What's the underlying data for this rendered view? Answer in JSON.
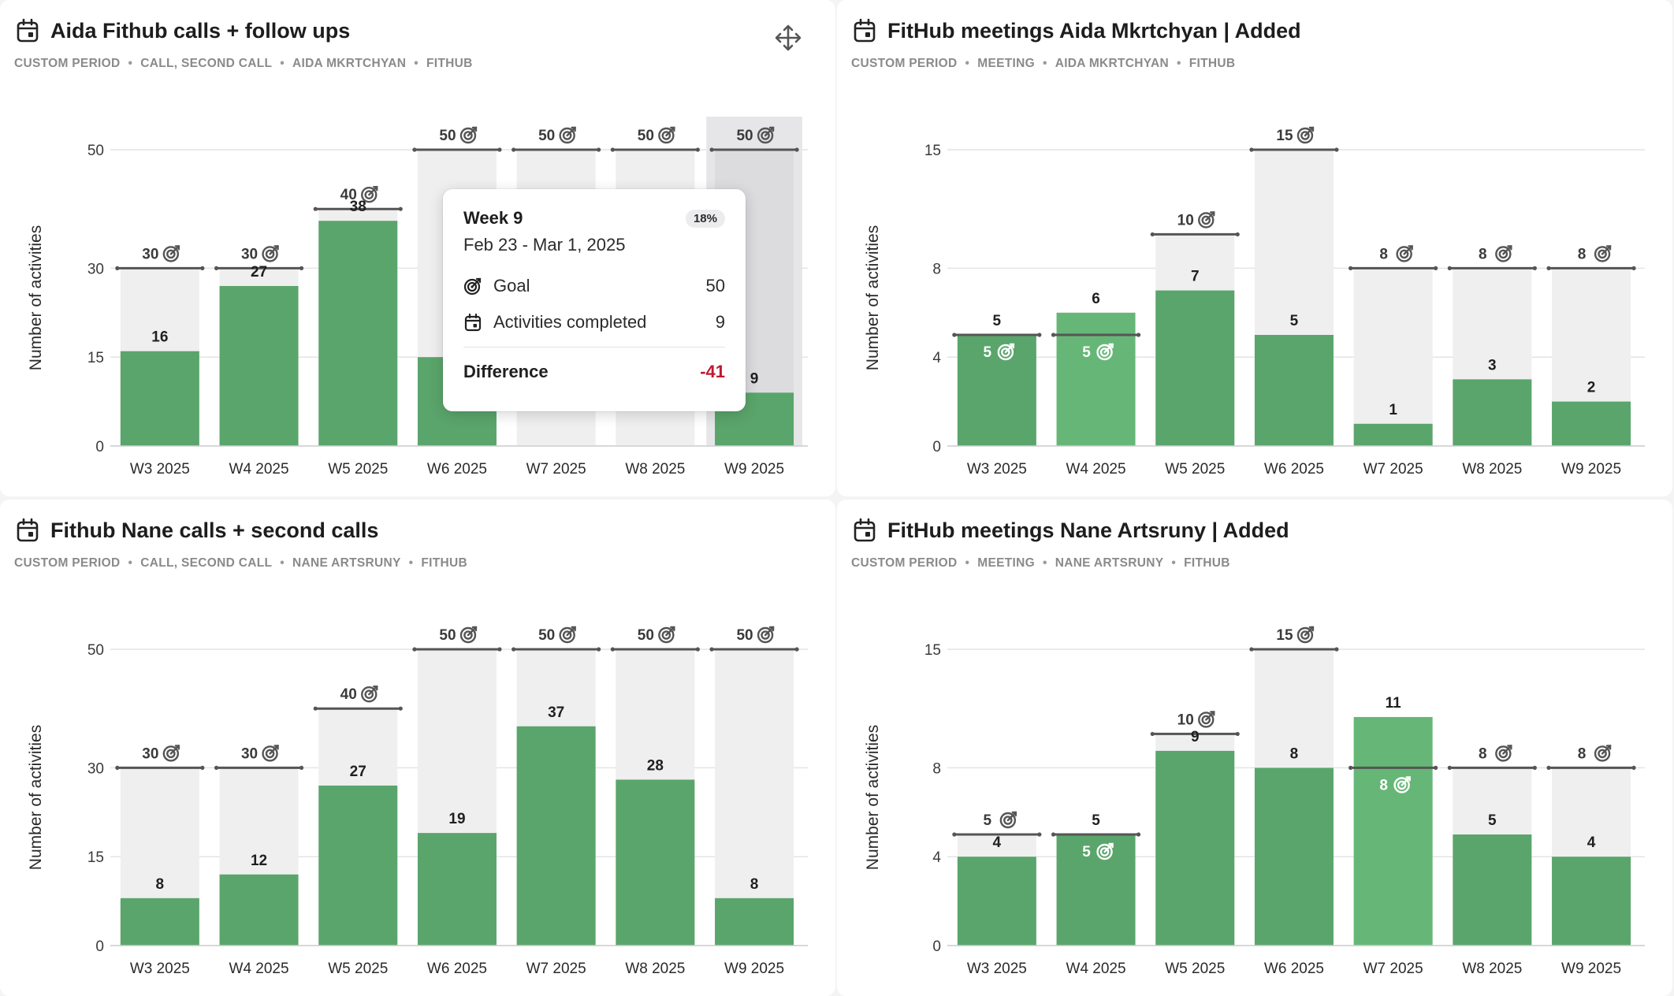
{
  "colors": {
    "bar": "#5aa56b",
    "bar_over": "#66b777",
    "target_fill": "#efefef",
    "goal_line": "#555555",
    "negative": "#c0182e"
  },
  "panels": [
    {
      "title": "Aida Fithub calls + follow ups",
      "meta": [
        "CUSTOM PERIOD",
        "CALL, SECOND CALL",
        "AIDA MKRTCHYAN",
        "FITHUB"
      ],
      "has_move_icon": true
    },
    {
      "title": "FitHub meetings Aida Mkrtchyan | Added",
      "meta": [
        "CUSTOM PERIOD",
        "MEETING",
        "AIDA MKRTCHYAN",
        "FITHUB"
      ],
      "has_move_icon": false
    },
    {
      "title": "Fithub Nane calls + second calls",
      "meta": [
        "CUSTOM PERIOD",
        "CALL, SECOND CALL",
        "NANE ARTSRUNY",
        "FITHUB"
      ],
      "has_move_icon": false
    },
    {
      "title": "FitHub meetings Nane Artsruny | Added",
      "meta": [
        "CUSTOM PERIOD",
        "MEETING",
        "NANE ARTSRUNY",
        "FITHUB"
      ],
      "has_move_icon": false
    }
  ],
  "chart_data": [
    {
      "type": "bar",
      "title": "Aida Fithub calls + follow ups",
      "ylabel": "Number of activities",
      "categories": [
        "W3 2025",
        "W4 2025",
        "W5 2025",
        "W6 2025",
        "W7 2025",
        "W8 2025",
        "W9 2025"
      ],
      "yticks": [
        0,
        15,
        30,
        50
      ],
      "ylim": [
        0,
        50
      ],
      "values": [
        16,
        27,
        38,
        15,
        null,
        null,
        9
      ],
      "labels": [
        "16",
        "27",
        "38",
        "",
        "",
        "",
        "9"
      ],
      "goals": [
        30,
        30,
        40,
        50,
        50,
        50,
        50
      ],
      "highlight_index": 6
    },
    {
      "type": "bar",
      "title": "FitHub meetings Aida Mkrtchyan | Added",
      "ylabel": "Number of activities",
      "categories": [
        "W3 2025",
        "W4 2025",
        "W5 2025",
        "W6 2025",
        "W7 2025",
        "W8 2025",
        "W9 2025"
      ],
      "yticks": [
        0,
        4,
        8,
        15
      ],
      "ylim": [
        0,
        15
      ],
      "values": [
        5,
        6,
        7,
        5,
        1,
        3,
        2
      ],
      "goals": [
        5,
        5,
        10,
        15,
        8,
        8,
        8
      ],
      "highlight_index": null
    },
    {
      "type": "bar",
      "title": "Fithub Nane calls + second calls",
      "ylabel": "Number of activities",
      "categories": [
        "W3 2025",
        "W4 2025",
        "W5 2025",
        "W6 2025",
        "W7 2025",
        "W8 2025",
        "W9 2025"
      ],
      "yticks": [
        0,
        15,
        30,
        50
      ],
      "ylim": [
        0,
        50
      ],
      "values": [
        8,
        12,
        27,
        19,
        37,
        28,
        8
      ],
      "goals": [
        30,
        30,
        40,
        50,
        50,
        50,
        50
      ],
      "highlight_index": null
    },
    {
      "type": "bar",
      "title": "FitHub meetings Nane Artsruny | Added",
      "ylabel": "Number of activities",
      "categories": [
        "W3 2025",
        "W4 2025",
        "W5 2025",
        "W6 2025",
        "W7 2025",
        "W8 2025",
        "W9 2025"
      ],
      "yticks": [
        0,
        4,
        8,
        15
      ],
      "ylim": [
        0,
        15
      ],
      "values": [
        4,
        5,
        9,
        8,
        11,
        5,
        4
      ],
      "goals": [
        5,
        5,
        10,
        15,
        8,
        8,
        8
      ],
      "highlight_index": null
    }
  ],
  "tooltip": {
    "week": "Week 9",
    "percent": "18%",
    "date_range": "Feb 23 - Mar 1, 2025",
    "goal_label": "Goal",
    "goal_value": "50",
    "completed_label": "Activities completed",
    "completed_value": "9",
    "difference_label": "Difference",
    "difference_value": "-41"
  }
}
